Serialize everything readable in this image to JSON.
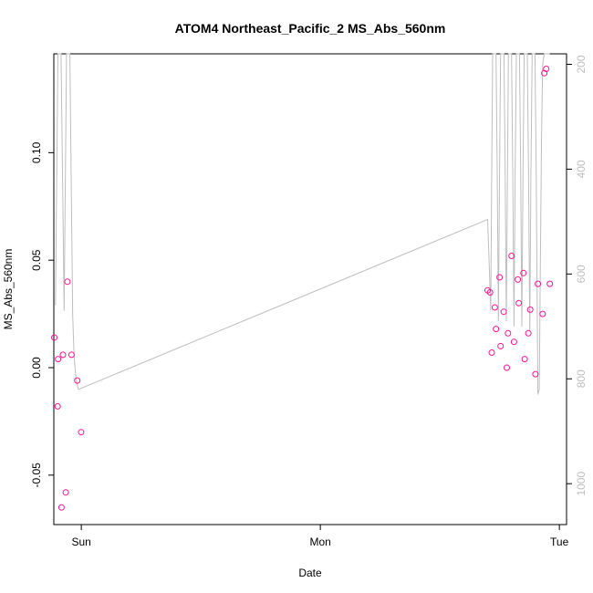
{
  "chart_data": {
    "type": "scatter",
    "title": "ATOM4 Northeast_Pacific_2 MS_Abs_560nm",
    "xlabel": "Date",
    "ylabel": "MS_Abs_560nm",
    "x_unit": "days",
    "xlim": [
      -0.115,
      2.03
    ],
    "ylim": [
      -0.073,
      0.146
    ],
    "x_ticks": [
      {
        "value": 0,
        "label": "Sun"
      },
      {
        "value": 1,
        "label": "Mon"
      },
      {
        "value": 2,
        "label": "Tue"
      }
    ],
    "y_ticks": [
      {
        "value": -0.05,
        "label": "-0.05"
      },
      {
        "value": 0.0,
        "label": "0.00"
      },
      {
        "value": 0.05,
        "label": "0.05"
      },
      {
        "value": 0.1,
        "label": "0.10"
      }
    ],
    "y2_ticks": [
      {
        "value": 200,
        "label": "200"
      },
      {
        "value": 400,
        "label": "400"
      },
      {
        "value": 600,
        "label": "600"
      },
      {
        "value": 800,
        "label": "800"
      },
      {
        "value": 1000,
        "label": "1000"
      }
    ],
    "y2_lim_inverted": [
      180,
      1078
    ],
    "series": [
      {
        "kind": "points",
        "color": "#ff1493",
        "points": [
          [
            -0.113,
            0.014
          ],
          [
            -0.099,
            -0.018
          ],
          [
            -0.097,
            0.004
          ],
          [
            -0.083,
            -0.065
          ],
          [
            -0.077,
            0.006
          ],
          [
            -0.065,
            -0.058
          ],
          [
            -0.058,
            0.04
          ],
          [
            -0.041,
            0.006
          ],
          [
            -0.017,
            -0.006
          ],
          [
            -0.001,
            -0.03
          ],
          [
            1.7,
            0.036
          ],
          [
            1.71,
            0.035
          ],
          [
            1.717,
            0.007
          ],
          [
            1.73,
            0.028
          ],
          [
            1.735,
            0.018
          ],
          [
            1.75,
            0.042
          ],
          [
            1.754,
            0.01
          ],
          [
            1.767,
            0.026
          ],
          [
            1.78,
            0.0
          ],
          [
            1.785,
            0.016
          ],
          [
            1.8,
            0.052
          ],
          [
            1.81,
            0.012
          ],
          [
            1.826,
            0.041
          ],
          [
            1.83,
            0.03
          ],
          [
            1.85,
            0.044
          ],
          [
            1.855,
            0.004
          ],
          [
            1.87,
            0.016
          ],
          [
            1.878,
            0.027
          ],
          [
            1.9,
            -0.003
          ],
          [
            1.91,
            0.039
          ],
          [
            1.93,
            0.025
          ],
          [
            1.937,
            0.137
          ],
          [
            1.945,
            0.139
          ],
          [
            1.96,
            0.039
          ]
        ]
      },
      {
        "kind": "line",
        "color": "#bebebe",
        "secondary_axis": true,
        "points": [
          [
            -0.108,
            660
          ],
          [
            -0.103,
            430
          ],
          [
            -0.098,
            150
          ],
          [
            -0.093,
            100
          ],
          [
            -0.085,
            150
          ],
          [
            -0.078,
            430
          ],
          [
            -0.072,
            670
          ],
          [
            -0.067,
            430
          ],
          [
            -0.062,
            150
          ],
          [
            -0.055,
            100
          ],
          [
            -0.048,
            150
          ],
          [
            -0.042,
            430
          ],
          [
            -0.036,
            680
          ],
          [
            -0.03,
            760
          ],
          [
            -0.022,
            800
          ],
          [
            -0.012,
            820
          ],
          [
            1.7,
            496
          ],
          [
            1.708,
            600
          ],
          [
            1.713,
            670
          ],
          [
            1.717,
            400
          ],
          [
            1.721,
            150
          ],
          [
            1.727,
            100
          ],
          [
            1.735,
            150
          ],
          [
            1.74,
            400
          ],
          [
            1.745,
            690
          ],
          [
            1.75,
            400
          ],
          [
            1.754,
            150
          ],
          [
            1.76,
            100
          ],
          [
            1.768,
            150
          ],
          [
            1.773,
            400
          ],
          [
            1.778,
            690
          ],
          [
            1.783,
            400
          ],
          [
            1.787,
            150
          ],
          [
            1.793,
            100
          ],
          [
            1.8,
            150
          ],
          [
            1.805,
            400
          ],
          [
            1.81,
            700
          ],
          [
            1.815,
            400
          ],
          [
            1.82,
            150
          ],
          [
            1.826,
            100
          ],
          [
            1.833,
            150
          ],
          [
            1.838,
            400
          ],
          [
            1.843,
            700
          ],
          [
            1.848,
            400
          ],
          [
            1.853,
            150
          ],
          [
            1.859,
            100
          ],
          [
            1.866,
            150
          ],
          [
            1.871,
            400
          ],
          [
            1.876,
            710
          ],
          [
            1.881,
            400
          ],
          [
            1.886,
            150
          ],
          [
            1.892,
            100
          ],
          [
            1.898,
            150
          ],
          [
            1.903,
            400
          ],
          [
            1.91,
            830
          ],
          [
            1.916,
            820
          ],
          [
            1.92,
            600
          ],
          [
            1.925,
            350
          ],
          [
            1.93,
            200
          ],
          [
            1.937,
            140
          ],
          [
            1.945,
            120
          ],
          [
            1.96,
            110
          ]
        ]
      }
    ],
    "grid": false,
    "legend": "none"
  }
}
